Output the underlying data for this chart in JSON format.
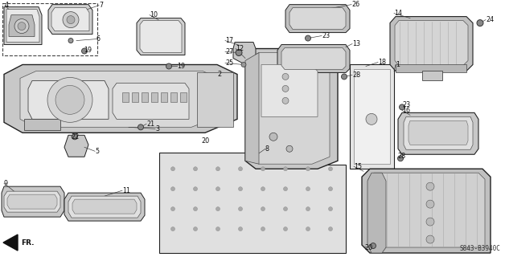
{
  "background_color": "#ffffff",
  "diagram_code": "S843-B3940C",
  "lc": "#222222",
  "fc_light": "#e8e8e8",
  "fc_mid": "#c8c8c8",
  "fc_dark": "#aaaaaa"
}
